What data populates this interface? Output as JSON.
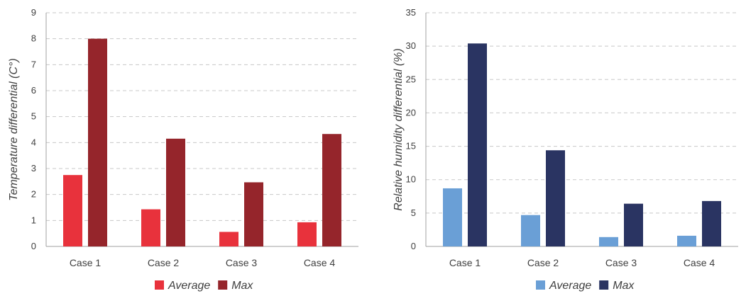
{
  "chart_data": [
    {
      "type": "bar",
      "categories": [
        "Case 1",
        "Case 2",
        "Case 3",
        "Case 4"
      ],
      "series": [
        {
          "name": "Average",
          "values": [
            2.75,
            1.43,
            0.56,
            0.93
          ],
          "color": "#e8323c"
        },
        {
          "name": "Max",
          "values": [
            8.0,
            4.15,
            2.47,
            4.33
          ],
          "color": "#95252b"
        }
      ],
      "ylabel": "Temperature differential (C°)",
      "xlabel": "",
      "ylim": [
        0,
        9
      ],
      "yticks": [
        0,
        1,
        2,
        3,
        4,
        5,
        6,
        7,
        8,
        9
      ],
      "ytick_labels": [
        "0",
        "1",
        "2",
        "3",
        "4",
        "5",
        "6",
        "7",
        "8",
        "9"
      ],
      "grid": true,
      "legend_position": "bottom-center"
    },
    {
      "type": "bar",
      "categories": [
        "Case 1",
        "Case 2",
        "Case 3",
        "Case 4"
      ],
      "series": [
        {
          "name": "Average",
          "values": [
            8.7,
            4.7,
            1.4,
            1.6
          ],
          "color": "#6a9fd6"
        },
        {
          "name": "Max",
          "values": [
            30.4,
            14.4,
            6.4,
            6.8
          ],
          "color": "#2a3462"
        }
      ],
      "ylabel": "Relative humidity differential (%)",
      "xlabel": "",
      "ylim": [
        0,
        35
      ],
      "yticks": [
        0,
        5,
        10,
        15,
        20,
        25,
        30,
        35
      ],
      "ytick_labels": [
        "0",
        "5",
        "10",
        "15",
        "20",
        "25",
        "30",
        "35"
      ],
      "grid": true,
      "legend_position": "bottom-center"
    }
  ]
}
